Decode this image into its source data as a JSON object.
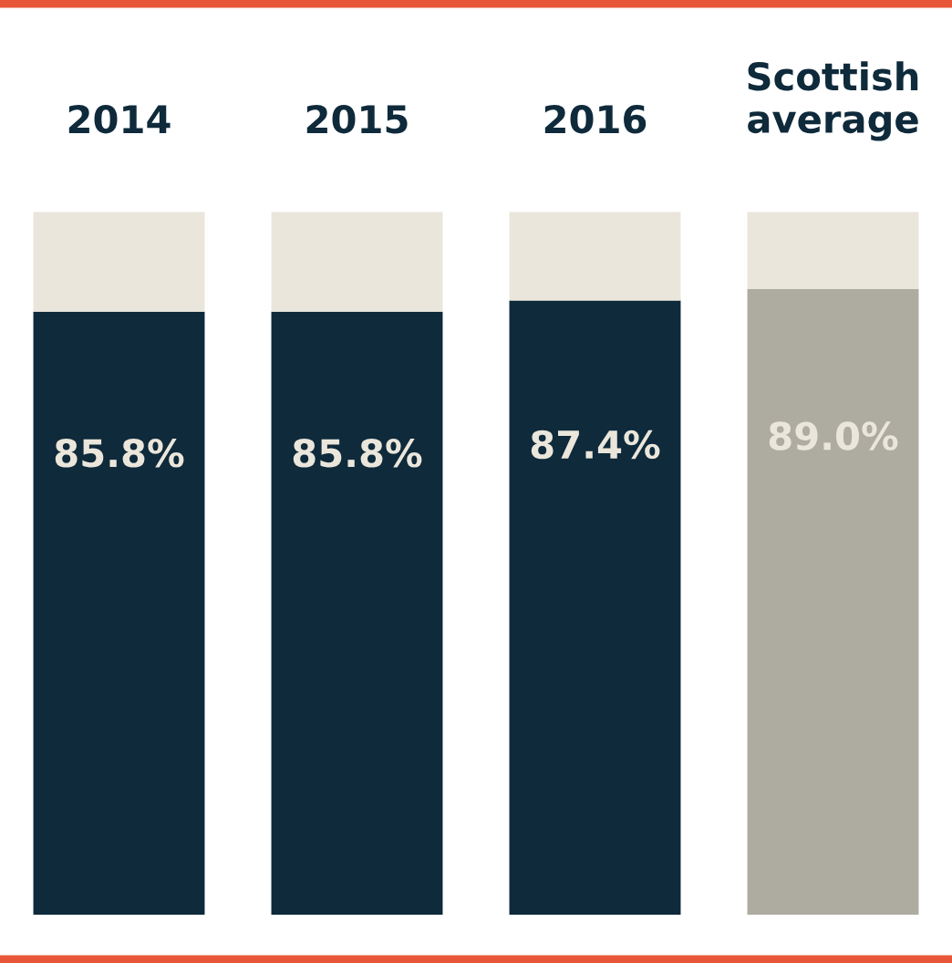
{
  "chart_data": {
    "type": "bar",
    "stacked": true,
    "categories": [
      "2014",
      "2015",
      "2016",
      "Scottish\naverage"
    ],
    "series": [
      {
        "colors": [
          "#0e2a3b",
          "#0e2a3b",
          "#0e2a3b",
          "#aeaca0"
        ],
        "values": [
          85.8,
          85.8,
          87.4,
          89.0
        ],
        "value_labels": [
          "85.8%",
          "85.8%",
          "87.4%",
          "89.0%"
        ]
      },
      {
        "color": "#ebe6db",
        "values": [
          14.2,
          14.2,
          12.6,
          11.0
        ]
      }
    ],
    "grid": false,
    "legend": false,
    "tick_labels": "x"
  }
}
